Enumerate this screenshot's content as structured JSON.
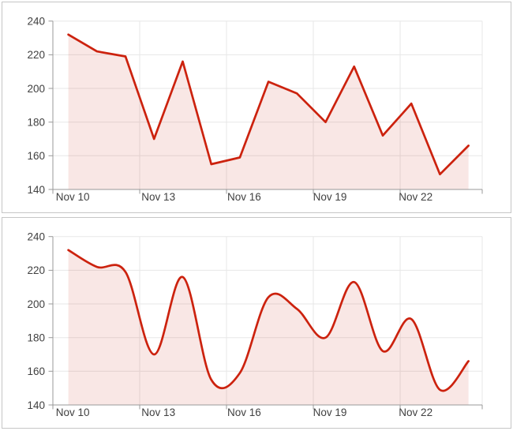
{
  "page": {
    "background_color": "#ffffff",
    "panel_border_color": "#c6c6c6"
  },
  "chart_data": [
    {
      "name": "daily-series-linear-area-chart",
      "type": "area",
      "interpolation": "linear",
      "title": "",
      "xlabel": "",
      "ylabel": "",
      "legend": "none",
      "grid": true,
      "categories": [
        "Nov 10",
        "Nov 11",
        "Nov 12",
        "Nov 13",
        "Nov 14",
        "Nov 15",
        "Nov 16",
        "Nov 17",
        "Nov 18",
        "Nov 19",
        "Nov 20",
        "Nov 21",
        "Nov 22",
        "Nov 23",
        "Nov 24"
      ],
      "values": [
        232,
        222,
        219,
        170,
        216,
        155,
        159,
        204,
        197,
        180,
        213,
        172,
        191,
        149,
        166
      ],
      "ylim": [
        140,
        240
      ],
      "y_ticks": [
        140,
        160,
        180,
        200,
        220,
        240
      ],
      "y_tick_labels": [
        "140",
        "160",
        "180",
        "200",
        "220",
        "240"
      ],
      "x_tick_indices": [
        0,
        3,
        6,
        9,
        12
      ],
      "x_tick_labels": [
        "Nov 10",
        "Nov 13",
        "Nov 16",
        "Nov 19",
        "Nov 22"
      ],
      "line_color": "#cc220e",
      "fill_color": "rgba(204,34,14,0.11)",
      "axis_color": "#999999",
      "grid_color": "#e7e7e7",
      "label_color": "#404040"
    },
    {
      "name": "daily-series-smooth-area-chart",
      "type": "area",
      "interpolation": "smooth",
      "title": "",
      "xlabel": "",
      "ylabel": "",
      "legend": "none",
      "grid": true,
      "categories": [
        "Nov 10",
        "Nov 11",
        "Nov 12",
        "Nov 13",
        "Nov 14",
        "Nov 15",
        "Nov 16",
        "Nov 17",
        "Nov 18",
        "Nov 19",
        "Nov 20",
        "Nov 21",
        "Nov 22",
        "Nov 23",
        "Nov 24"
      ],
      "values": [
        232,
        222,
        219,
        170,
        216,
        155,
        159,
        204,
        197,
        180,
        213,
        172,
        191,
        149,
        166
      ],
      "ylim": [
        140,
        240
      ],
      "y_ticks": [
        140,
        160,
        180,
        200,
        220,
        240
      ],
      "y_tick_labels": [
        "140",
        "160",
        "180",
        "200",
        "220",
        "240"
      ],
      "x_tick_indices": [
        0,
        3,
        6,
        9,
        12
      ],
      "x_tick_labels": [
        "Nov 10",
        "Nov 13",
        "Nov 16",
        "Nov 19",
        "Nov 22"
      ],
      "line_color": "#cc220e",
      "fill_color": "rgba(204,34,14,0.11)",
      "axis_color": "#999999",
      "grid_color": "#e7e7e7",
      "label_color": "#404040"
    }
  ]
}
